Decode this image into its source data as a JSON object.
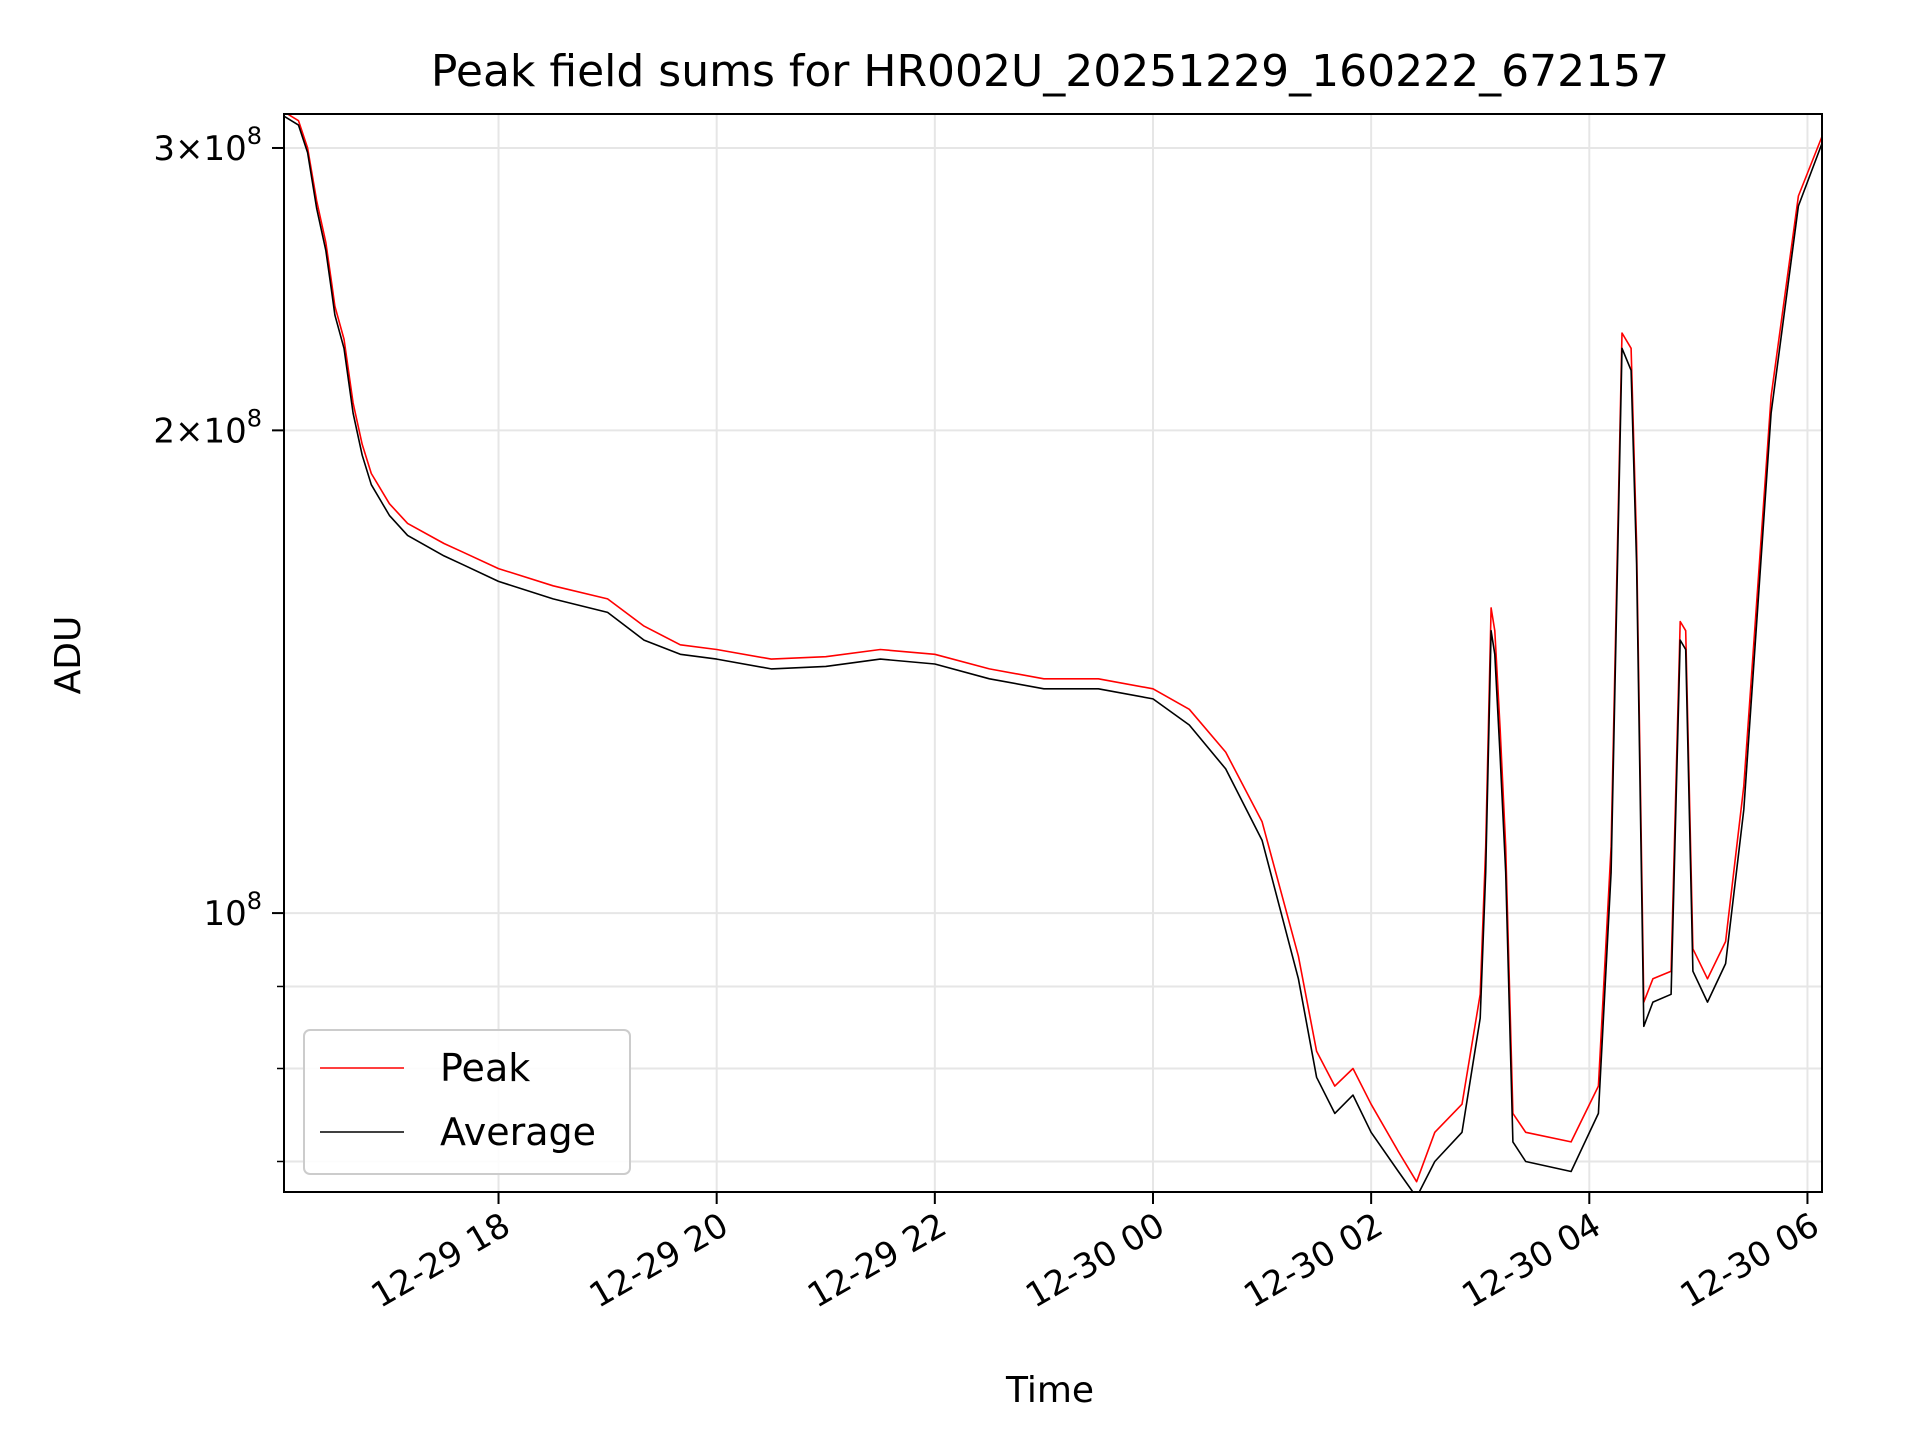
{
  "chart_data": {
    "type": "line",
    "title": "Peak field sums for HR002U_20251229_160222_672157",
    "xlabel": "Time",
    "ylabel": "ADU",
    "yscale": "log",
    "grid": true,
    "legend_placement": "lower-left",
    "xlim": [
      "2025-12-29 16:02",
      "2025-12-30 06:08"
    ],
    "ylim": [
      67000000,
      315000000
    ],
    "x_ticks": [
      {
        "value": "2025-12-29 18:00",
        "label": "12-29 18"
      },
      {
        "value": "2025-12-29 20:00",
        "label": "12-29 20"
      },
      {
        "value": "2025-12-29 22:00",
        "label": "12-29 22"
      },
      {
        "value": "2025-12-30 00:00",
        "label": "12-30 00"
      },
      {
        "value": "2025-12-30 02:00",
        "label": "12-30 02"
      },
      {
        "value": "2025-12-30 04:00",
        "label": "12-30 04"
      },
      {
        "value": "2025-12-30 06:00",
        "label": "12-30 06"
      }
    ],
    "y_ticks": [
      {
        "value": 100000000,
        "mantissa": "",
        "exponent": "8"
      },
      {
        "value": 200000000,
        "mantissa": "2",
        "exponent": "8"
      },
      {
        "value": 300000000,
        "mantissa": "3",
        "exponent": "8"
      }
    ],
    "y_minor_ticks": [
      70000000,
      80000000,
      90000000
    ],
    "series": [
      {
        "name": "Peak",
        "color": "#ff0000",
        "x": [
          "2025-12-29 16:02",
          "2025-12-29 16:10",
          "2025-12-29 16:15",
          "2025-12-29 16:20",
          "2025-12-29 16:25",
          "2025-12-29 16:28",
          "2025-12-29 16:30",
          "2025-12-29 16:35",
          "2025-12-29 16:40",
          "2025-12-29 16:45",
          "2025-12-29 16:50",
          "2025-12-29 17:00",
          "2025-12-29 17:10",
          "2025-12-29 17:30",
          "2025-12-29 17:40",
          "2025-12-29 18:00",
          "2025-12-29 18:30",
          "2025-12-29 19:00",
          "2025-12-29 19:20",
          "2025-12-29 19:40",
          "2025-12-29 20:00",
          "2025-12-29 20:30",
          "2025-12-29 21:00",
          "2025-12-29 21:30",
          "2025-12-29 22:00",
          "2025-12-29 22:30",
          "2025-12-29 23:00",
          "2025-12-29 23:30",
          "2025-12-30 00:00",
          "2025-12-30 00:20",
          "2025-12-30 00:40",
          "2025-12-30 01:00",
          "2025-12-30 01:20",
          "2025-12-30 01:30",
          "2025-12-30 01:40",
          "2025-12-30 01:50",
          "2025-12-30 02:00",
          "2025-12-30 02:15",
          "2025-12-30 02:25",
          "2025-12-30 02:35",
          "2025-12-30 02:50",
          "2025-12-30 03:00",
          "2025-12-30 03:03",
          "2025-12-30 03:06",
          "2025-12-30 03:08",
          "2025-12-30 03:11",
          "2025-12-30 03:14",
          "2025-12-30 03:18",
          "2025-12-30 03:25",
          "2025-12-30 03:50",
          "2025-12-30 04:05",
          "2025-12-30 04:12",
          "2025-12-30 04:18",
          "2025-12-30 04:23",
          "2025-12-30 04:26",
          "2025-12-30 04:30",
          "2025-12-30 04:35",
          "2025-12-30 04:45",
          "2025-12-30 04:50",
          "2025-12-30 04:53",
          "2025-12-30 04:57",
          "2025-12-30 05:05",
          "2025-12-30 05:15",
          "2025-12-30 05:25",
          "2025-12-30 05:40",
          "2025-12-30 05:55",
          "2025-12-30 06:08"
        ],
        "y": [
          316000000,
          312000000,
          300000000,
          278000000,
          262000000,
          248000000,
          239000000,
          228000000,
          208000000,
          196000000,
          188000000,
          180000000,
          175000000,
          170000000,
          168000000,
          164000000,
          160000000,
          157000000,
          151000000,
          147000000,
          146000000,
          144000000,
          144500000,
          146000000,
          145000000,
          142000000,
          140000000,
          140000000,
          138000000,
          134000000,
          126000000,
          114000000,
          94000000,
          82000000,
          78000000,
          80000000,
          76000000,
          71000000,
          68000000,
          73000000,
          76000000,
          89000000,
          110000000,
          155000000,
          150000000,
          130000000,
          110000000,
          75000000,
          73000000,
          72000000,
          78000000,
          110000000,
          230000000,
          225000000,
          170000000,
          88000000,
          91000000,
          92000000,
          152000000,
          150000000,
          95000000,
          91000000,
          96000000,
          120000000,
          210000000,
          280000000,
          305000000
        ]
      },
      {
        "name": "Average",
        "color": "#000000",
        "x": [
          "2025-12-29 16:02",
          "2025-12-29 16:10",
          "2025-12-29 16:15",
          "2025-12-29 16:20",
          "2025-12-29 16:25",
          "2025-12-29 16:28",
          "2025-12-29 16:30",
          "2025-12-29 16:35",
          "2025-12-29 16:40",
          "2025-12-29 16:45",
          "2025-12-29 16:50",
          "2025-12-29 17:00",
          "2025-12-29 17:10",
          "2025-12-29 17:30",
          "2025-12-29 17:40",
          "2025-12-29 18:00",
          "2025-12-29 18:30",
          "2025-12-29 19:00",
          "2025-12-29 19:20",
          "2025-12-29 19:40",
          "2025-12-29 20:00",
          "2025-12-29 20:30",
          "2025-12-29 21:00",
          "2025-12-29 21:30",
          "2025-12-29 22:00",
          "2025-12-29 22:30",
          "2025-12-29 23:00",
          "2025-12-29 23:30",
          "2025-12-30 00:00",
          "2025-12-30 00:20",
          "2025-12-30 00:40",
          "2025-12-30 01:00",
          "2025-12-30 01:20",
          "2025-12-30 01:30",
          "2025-12-30 01:40",
          "2025-12-30 01:50",
          "2025-12-30 02:00",
          "2025-12-30 02:15",
          "2025-12-30 02:25",
          "2025-12-30 02:35",
          "2025-12-30 02:50",
          "2025-12-30 03:00",
          "2025-12-30 03:03",
          "2025-12-30 03:06",
          "2025-12-30 03:08",
          "2025-12-30 03:11",
          "2025-12-30 03:14",
          "2025-12-30 03:18",
          "2025-12-30 03:25",
          "2025-12-30 03:50",
          "2025-12-30 04:05",
          "2025-12-30 04:12",
          "2025-12-30 04:18",
          "2025-12-30 04:23",
          "2025-12-30 04:26",
          "2025-12-30 04:30",
          "2025-12-30 04:35",
          "2025-12-30 04:45",
          "2025-12-30 04:50",
          "2025-12-30 04:53",
          "2025-12-30 04:57",
          "2025-12-30 05:05",
          "2025-12-30 05:15",
          "2025-12-30 05:25",
          "2025-12-30 05:40",
          "2025-12-30 05:55",
          "2025-12-30 06:08"
        ],
        "y": [
          314000000,
          310000000,
          298000000,
          275000000,
          259000000,
          245000000,
          236000000,
          225000000,
          205000000,
          193000000,
          185000000,
          177000000,
          172000000,
          167000000,
          165000000,
          161000000,
          157000000,
          154000000,
          148000000,
          145000000,
          144000000,
          142000000,
          142500000,
          144000000,
          143000000,
          140000000,
          138000000,
          138000000,
          136000000,
          131000000,
          123000000,
          111000000,
          91000000,
          79000000,
          75000000,
          77000000,
          73000000,
          69000000,
          66500000,
          70000000,
          73000000,
          86000000,
          106000000,
          150000000,
          145000000,
          125000000,
          106000000,
          72000000,
          70000000,
          69000000,
          75000000,
          106000000,
          225000000,
          218000000,
          165000000,
          85000000,
          88000000,
          89000000,
          148000000,
          146000000,
          92000000,
          88000000,
          93000000,
          116000000,
          205000000,
          276000000,
          302000000
        ]
      }
    ]
  }
}
